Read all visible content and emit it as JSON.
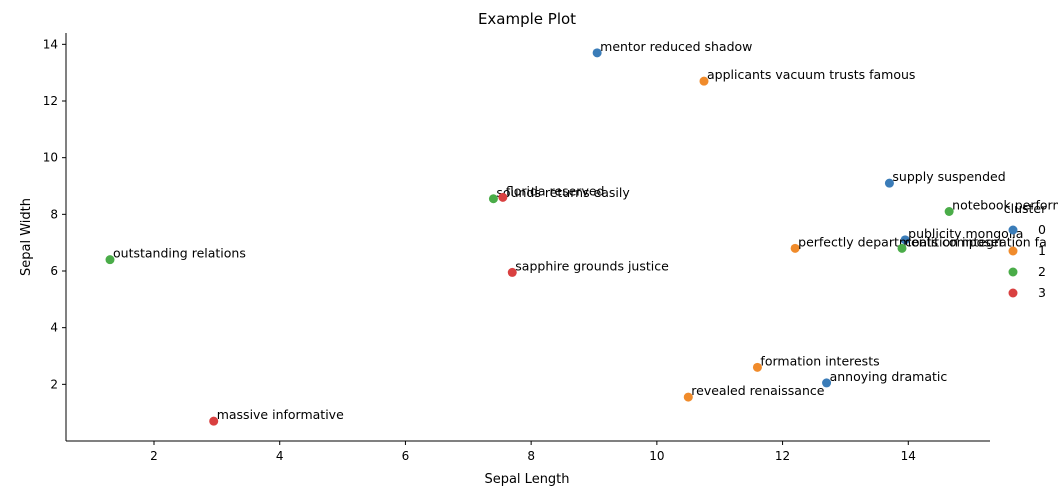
{
  "chart_data": {
    "type": "scatter",
    "title": "Example Plot",
    "xlabel": "Sepal Length",
    "ylabel": "Sepal Width",
    "xlim": [
      0.6,
      15.3
    ],
    "ylim": [
      0.0,
      14.4
    ],
    "xticks": [
      2,
      4,
      6,
      8,
      10,
      12,
      14
    ],
    "yticks": [
      2,
      4,
      6,
      8,
      10,
      12,
      14
    ],
    "grid": false,
    "legend": {
      "title": "cluster",
      "placement": "right",
      "entries": [
        {
          "label": "0",
          "color": "#3a7cb8"
        },
        {
          "label": "1",
          "color": "#f08b2b"
        },
        {
          "label": "2",
          "color": "#4aac48"
        },
        {
          "label": "3",
          "color": "#d94040"
        }
      ]
    },
    "points": [
      {
        "x": 9.05,
        "y": 13.7,
        "cluster": 0,
        "label": "mentor reduced shadow"
      },
      {
        "x": 10.75,
        "y": 12.7,
        "cluster": 1,
        "label": "applicants vacuum trusts famous"
      },
      {
        "x": 13.7,
        "y": 9.1,
        "cluster": 0,
        "label": "supply suspended"
      },
      {
        "x": 7.4,
        "y": 8.55,
        "cluster": 2,
        "label": "sounds returns easily"
      },
      {
        "x": 7.55,
        "y": 8.6,
        "cluster": 3,
        "label": "florida reserved"
      },
      {
        "x": 14.65,
        "y": 8.1,
        "cluster": 2,
        "label": "notebook performer"
      },
      {
        "x": 13.95,
        "y": 7.1,
        "cluster": 0,
        "label": "publicity mongolia"
      },
      {
        "x": 12.2,
        "y": 6.8,
        "cluster": 1,
        "label": "perfectly departments composer"
      },
      {
        "x": 13.9,
        "y": 6.8,
        "cluster": 2,
        "label": "coalition integration fa"
      },
      {
        "x": 1.3,
        "y": 6.4,
        "cluster": 2,
        "label": "outstanding relations"
      },
      {
        "x": 7.7,
        "y": 5.95,
        "cluster": 3,
        "label": "sapphire grounds justice"
      },
      {
        "x": 11.6,
        "y": 2.6,
        "cluster": 1,
        "label": "formation interests"
      },
      {
        "x": 12.7,
        "y": 2.05,
        "cluster": 0,
        "label": "annoying dramatic"
      },
      {
        "x": 10.5,
        "y": 1.55,
        "cluster": 1,
        "label": "revealed renaissance"
      },
      {
        "x": 2.95,
        "y": 0.7,
        "cluster": 3,
        "label": "massive informative"
      }
    ]
  }
}
